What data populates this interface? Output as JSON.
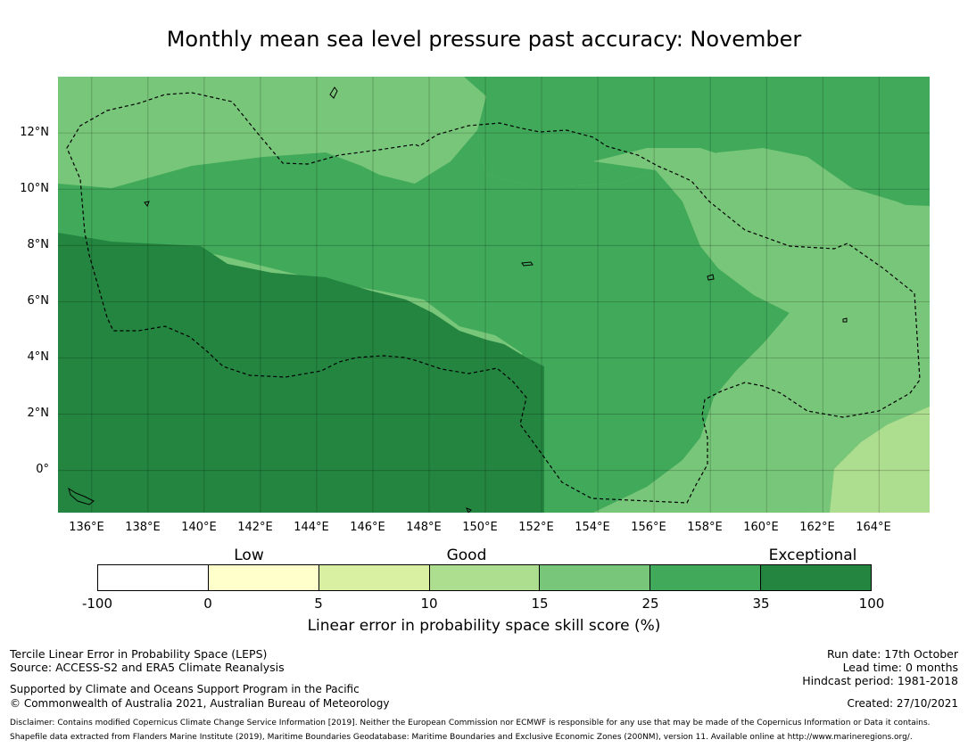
{
  "title": "Monthly mean sea level pressure past accuracy: November",
  "map": {
    "lat_labels": [
      "12°N",
      "10°N",
      "8°N",
      "6°N",
      "4°N",
      "2°N",
      "0°"
    ],
    "lon_labels": [
      "136°E",
      "138°E",
      "140°E",
      "142°E",
      "144°E",
      "146°E",
      "148°E",
      "150°E",
      "152°E",
      "154°E",
      "156°E",
      "158°E",
      "160°E",
      "162°E",
      "164°E"
    ],
    "lat_range": [
      -1.5,
      14
    ],
    "lon_range": [
      134.8,
      165.8
    ],
    "colors": {
      "exceptional": "#23853f",
      "good_high": "#40aa5a",
      "good_mid": "#78c679",
      "good_low": "#addd8e",
      "low": "#d9f0a3",
      "very_low": "#ffffcc",
      "none": "#ffffff"
    }
  },
  "colorbar": {
    "categories": [
      "Low",
      "Good",
      "Exceptional"
    ],
    "ticks": [
      "-100",
      "0",
      "5",
      "10",
      "15",
      "25",
      "35",
      "100"
    ],
    "segment_colors": [
      "#ffffff",
      "#ffffcc",
      "#d9f0a3",
      "#addd8e",
      "#78c679",
      "#40aa5a",
      "#23853f"
    ],
    "label": "Linear error in probability space skill score (%)"
  },
  "footer": {
    "left1": "Tercile Linear Error in Probability Space (LEPS)",
    "left2": "Source: ACCESS-S2 and ERA5 Climate Reanalysis",
    "left3": "Supported by Climate and Oceans Support Program in the Pacific",
    "left4": "© Commonwealth of Australia 2021, Australian Bureau of Meteorology",
    "right1": "Run date: 17th October",
    "right2": "Lead time: 0 months",
    "right3": "Hindcast period: 1981-2018",
    "created": "Created: 27/10/2021",
    "disclaimer1": "Disclaimer: Contains modified Copernicus Climate Change Service Information [2019]. Neither the European Commission nor ECMWF is responsible for any use that may be made of the Copernicus Information or Data it contains.",
    "disclaimer2": "Shapefile data extracted from Flanders Marine Institute (2019), Maritime Boundaries Geodatabase: Maritime Boundaries and Exclusive Economic Zones (200NM), version 11. Available online at http://www.marineregions.org/."
  }
}
